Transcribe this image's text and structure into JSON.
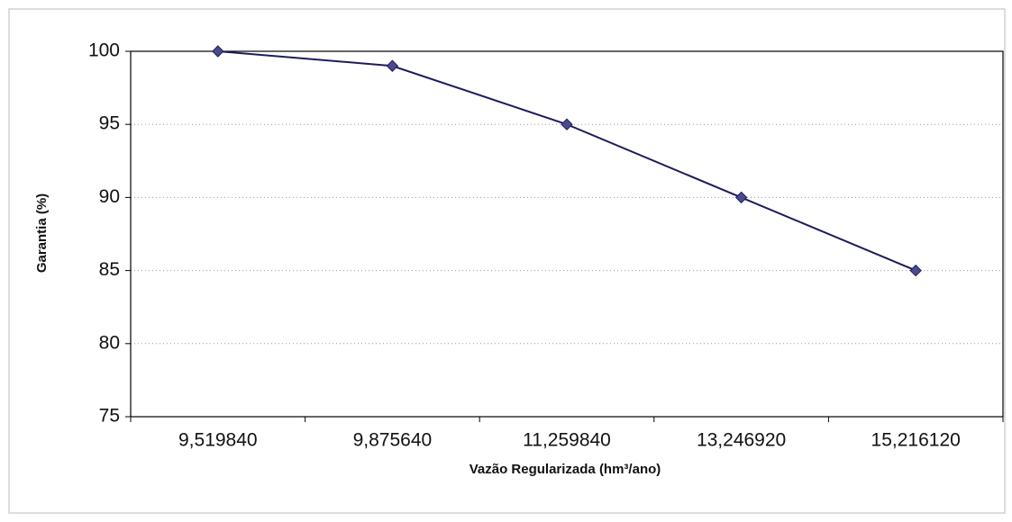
{
  "chart_data": {
    "type": "line",
    "xlabel": "Vazão Regularizada (hm³/ano)",
    "ylabel": "Garantia (%)",
    "categories": [
      "9,519840",
      "9,875640",
      "11,259840",
      "13,246920",
      "15,216120"
    ],
    "values": [
      100,
      99,
      95,
      90,
      85
    ],
    "color": "#1c1c5c",
    "marker_color": "#4b4b8c",
    "ylim": [
      75,
      100
    ],
    "yticks": [
      75,
      80,
      85,
      90,
      95,
      100
    ],
    "grid": true
  }
}
